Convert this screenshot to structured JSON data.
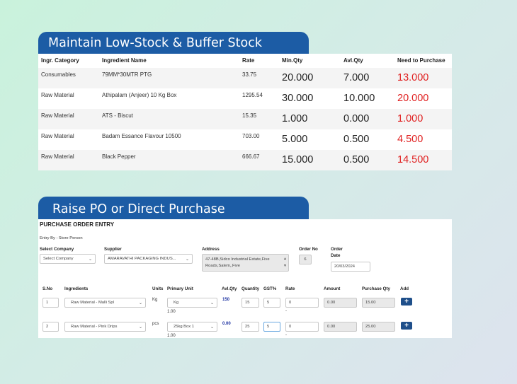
{
  "stock": {
    "title": "Maintain Low-Stock & Buffer Stock",
    "headers": [
      "Ingr. Category",
      "Ingredient Name",
      "Rate",
      "Min.Qty",
      "Avl.Qty",
      "Need to Purchase"
    ],
    "rows": [
      {
        "category": "Consumables",
        "name": "79MM*30MTR PTG",
        "rate": "33.75",
        "min": "20.000",
        "avl": "7.000",
        "need": "13.000"
      },
      {
        "category": "Raw Material",
        "name": "Athipalam (Anjeer) 10 Kg Box",
        "rate": "1295.54",
        "min": "30.000",
        "avl": "10.000",
        "need": "20.000"
      },
      {
        "category": "Raw Material",
        "name": "ATS - Biscut",
        "rate": "15.35",
        "min": "1.000",
        "avl": "0.000",
        "need": "1.000"
      },
      {
        "category": "Raw Material",
        "name": "Badam Essance Flavour 10500",
        "rate": "703.00",
        "min": "5.000",
        "avl": "0.500",
        "need": "4.500"
      },
      {
        "category": "Raw Material",
        "name": "Black Pepper",
        "rate": "666.67",
        "min": "15.000",
        "avl": "0.500",
        "need": "14.500"
      }
    ],
    "need_color": "#e02020"
  },
  "po": {
    "tab_title": "Raise PO or Direct Purchase",
    "heading": "PURCHASE ORDER ENTRY",
    "entry_by": "Entry By : Store Person",
    "select_company_label": "Select Company",
    "select_company_value": "Select Company",
    "supplier_label": "Supplier",
    "supplier_value": "AMARAVATHI PACKAGING INDUS...",
    "address_label": "Address",
    "address_value": "47-48B,Sidco Industrial Estate,Five Roads,Salem,,Five",
    "order_no_label": "Order No",
    "order_no_value": "6",
    "order_date_label_1": "Order",
    "order_date_label_2": "Date",
    "order_date_value": "20/03/2024",
    "columns": {
      "sno": "S.No",
      "ingredients": "Ingredients",
      "units": "Units",
      "primary_unit": "Primary Unit",
      "avl_qty": "Avl.Qty",
      "quantity": "Quantity",
      "gst": "GST%",
      "rate": "Rate",
      "amount": "Amount",
      "purchase_qty": "Purchase Qty",
      "add": "Add"
    },
    "lines": [
      {
        "sno": "1",
        "ingredient": "Raw Material - Malli Spl",
        "unit": "Kg",
        "primary_unit": "Kg",
        "conv": "1.00",
        "avl_qty": "150",
        "quantity": "15",
        "gst": "5",
        "rate": "0",
        "rate_note": "-",
        "amount": "0.00",
        "purchase_qty": "15.00",
        "add": "+"
      },
      {
        "sno": "2",
        "ingredient": "Raw Material - Pink Drips",
        "unit": "pcs",
        "primary_unit": "25kg Box 1",
        "conv": "1.00",
        "avl_qty": "0.00",
        "quantity": "25",
        "gst": "5",
        "rate": "0",
        "rate_note": "-",
        "amount": "0.00",
        "purchase_qty": "25.00",
        "add": "+"
      }
    ]
  }
}
